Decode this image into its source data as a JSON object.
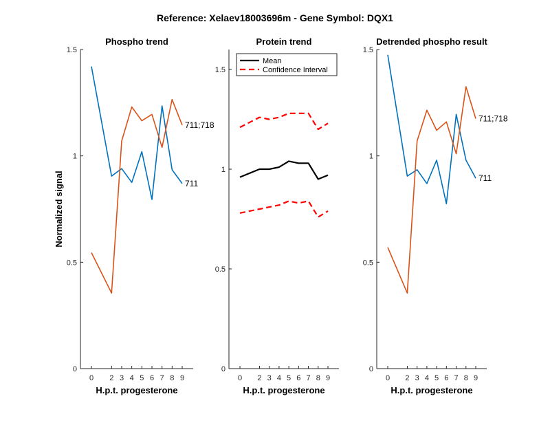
{
  "figure_title": "Reference:  Xelaev18003696m - Gene Symbol:  DQX1",
  "colors": {
    "blue": "#0072BD",
    "orange": "#D95319",
    "mean": "#000000",
    "ci": "#FF0000",
    "axis": "#262626"
  },
  "chart_data": [
    {
      "type": "line",
      "title": "Phospho trend",
      "xlabel": "H.p.t. progesterone",
      "ylabel": "Normalized signal",
      "x": [
        0,
        2,
        3,
        4,
        5,
        6,
        7,
        8,
        9
      ],
      "xlim": [
        0,
        9
      ],
      "ylim": [
        0,
        1.5
      ],
      "yticks": [
        0,
        0.5,
        1,
        1.5
      ],
      "yticklabels": [
        "0",
        "0.5",
        "1",
        "1.5"
      ],
      "series": [
        {
          "name": "711",
          "color": "blue",
          "values": [
            1.42,
            0.905,
            0.94,
            0.875,
            1.02,
            0.795,
            1.235,
            0.935,
            0.87
          ]
        },
        {
          "name": "711;718",
          "color": "orange",
          "values": [
            0.545,
            0.355,
            1.07,
            1.23,
            1.165,
            1.195,
            1.04,
            1.265,
            1.145
          ]
        }
      ]
    },
    {
      "type": "line",
      "title": "Protein trend",
      "xlabel": "H.p.t. progesterone",
      "ylabel": "",
      "x": [
        0,
        2,
        3,
        4,
        5,
        6,
        7,
        8,
        9
      ],
      "xlim": [
        0,
        9
      ],
      "ylim": [
        0,
        1.6
      ],
      "yticks": [
        0,
        0.5,
        1,
        1.5
      ],
      "yticklabels": [
        "0",
        "0.5",
        "1",
        "1.5"
      ],
      "legend": {
        "position": "top-left",
        "entries": [
          "Mean",
          "Confidence Interval"
        ]
      },
      "series": [
        {
          "name": "Mean",
          "color": "mean",
          "style": "solid",
          "values": [
            0.96,
            1.0,
            1.0,
            1.01,
            1.04,
            1.03,
            1.03,
            0.95,
            0.97
          ]
        },
        {
          "name": "Confidence Interval",
          "color": "ci",
          "style": "dashed",
          "values": [
            1.21,
            1.26,
            1.25,
            1.26,
            1.28,
            1.28,
            1.28,
            1.2,
            1.23
          ]
        },
        {
          "name": "Confidence Interval",
          "color": "ci",
          "style": "dashed",
          "values": [
            0.78,
            0.8,
            0.81,
            0.82,
            0.84,
            0.83,
            0.84,
            0.76,
            0.79
          ]
        }
      ]
    },
    {
      "type": "line",
      "title": "Detrended phospho result",
      "xlabel": "H.p.t. progesterone",
      "ylabel": "",
      "x": [
        0,
        2,
        3,
        4,
        5,
        6,
        7,
        8,
        9
      ],
      "xlim": [
        0,
        9
      ],
      "ylim": [
        0,
        1.5
      ],
      "yticks": [
        0,
        0.5,
        1,
        1.5
      ],
      "yticklabels": [
        "0",
        "0.5",
        "1",
        "1.5"
      ],
      "series": [
        {
          "name": "711",
          "color": "blue",
          "values": [
            1.475,
            0.905,
            0.935,
            0.87,
            0.98,
            0.775,
            1.195,
            0.98,
            0.895
          ]
        },
        {
          "name": "711;718",
          "color": "orange",
          "values": [
            0.57,
            0.355,
            1.07,
            1.215,
            1.12,
            1.16,
            1.01,
            1.325,
            1.175
          ]
        }
      ]
    }
  ]
}
